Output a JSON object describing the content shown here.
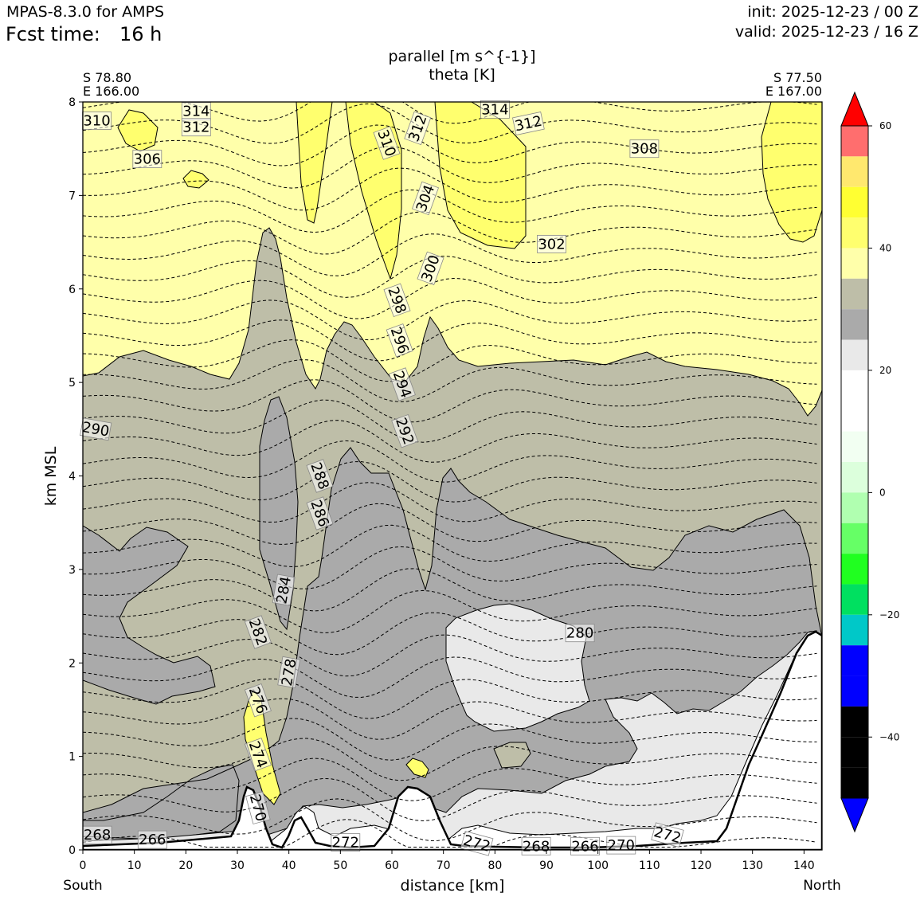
{
  "header": {
    "model": "MPAS-8.3.0 for AMPS",
    "fcst_label": "Fcst time:",
    "fcst_value": "16 h",
    "init": "init: 2025-12-23 / 00 Z",
    "valid": "valid: 2025-12-23 / 16 Z"
  },
  "endpoints": {
    "left_lat": "S 78.80",
    "left_lon": "E 166.00",
    "right_lat": "S 77.50",
    "right_lon": "E 167.00",
    "left_dir": "South",
    "right_dir": "North"
  },
  "chart_data": {
    "type": "cross-section",
    "title": "parallel [m s^{-1}]",
    "subtitle": "theta [K]",
    "xlabel": "distance [km]",
    "ylabel": "km MSL",
    "xlim": [
      0,
      143.5
    ],
    "ylim": [
      0,
      8
    ],
    "xticks": [
      "0",
      "10",
      "20",
      "30",
      "40",
      "50",
      "60",
      "70",
      "80",
      "90",
      "100",
      "110",
      "120",
      "130",
      "140"
    ],
    "yticks": [
      "0",
      "1",
      "2",
      "3",
      "4",
      "5",
      "6",
      "7",
      "8"
    ],
    "colorbar": {
      "ticks": [
        "60",
        "40",
        "20",
        "0",
        "−20",
        "−40"
      ],
      "tick_values": [
        60,
        40,
        20,
        0,
        -20,
        -40
      ],
      "range": [
        -50,
        60
      ],
      "levels": [
        60,
        55,
        50,
        45,
        40,
        35,
        30,
        25,
        20,
        15,
        10,
        5,
        0,
        -5,
        -10,
        -15,
        -20,
        -25,
        -30,
        -35,
        -40,
        -45,
        -50
      ],
      "colors": [
        "#ff0000",
        "#ff6e6e",
        "#ffe86e",
        "#ffff32",
        "#ffff6e",
        "#ffffaa",
        "#bebea8",
        "#aaaaaa",
        "#e9e9e9",
        "#ffffff",
        "#ffffff",
        "#f2fff2",
        "#dcffdc",
        "#b0ffb0",
        "#66ff66",
        "#20ff20",
        "#00e060",
        "#00c8c8",
        "#0000ff",
        "#0000ff"
      ]
    },
    "theta_labels": [
      {
        "text": "310",
        "x": 2.7,
        "y": 7.8,
        "rot": 0
      },
      {
        "text": "314",
        "x": 22,
        "y": 7.9,
        "rot": 0
      },
      {
        "text": "312",
        "x": 22,
        "y": 7.73,
        "rot": 0
      },
      {
        "text": "306",
        "x": 12.5,
        "y": 7.39,
        "rot": 0
      },
      {
        "text": "310",
        "x": 59,
        "y": 7.56,
        "rot": 70
      },
      {
        "text": "312",
        "x": 65,
        "y": 7.72,
        "rot": -70
      },
      {
        "text": "314",
        "x": 80,
        "y": 7.92,
        "rot": 0
      },
      {
        "text": "312",
        "x": 86.5,
        "y": 7.77,
        "rot": -12
      },
      {
        "text": "308",
        "x": 109,
        "y": 7.5,
        "rot": 0
      },
      {
        "text": "304",
        "x": 66.5,
        "y": 6.97,
        "rot": -70
      },
      {
        "text": "302",
        "x": 91,
        "y": 6.48,
        "rot": 0
      },
      {
        "text": "300",
        "x": 67.5,
        "y": 6.22,
        "rot": -70
      },
      {
        "text": "298",
        "x": 61,
        "y": 5.88,
        "rot": 70
      },
      {
        "text": "296",
        "x": 61.5,
        "y": 5.45,
        "rot": 70
      },
      {
        "text": "294",
        "x": 62,
        "y": 4.98,
        "rot": 70
      },
      {
        "text": "292",
        "x": 62.5,
        "y": 4.48,
        "rot": 70
      },
      {
        "text": "290",
        "x": 2.5,
        "y": 4.5,
        "rot": 10
      },
      {
        "text": "288",
        "x": 46,
        "y": 4.0,
        "rot": 70
      },
      {
        "text": "286",
        "x": 46,
        "y": 3.6,
        "rot": 70
      },
      {
        "text": "284",
        "x": 39,
        "y": 2.78,
        "rot": -80
      },
      {
        "text": "282",
        "x": 34,
        "y": 2.33,
        "rot": 70
      },
      {
        "text": "278",
        "x": 40,
        "y": 1.9,
        "rot": -80
      },
      {
        "text": "280",
        "x": 96.5,
        "y": 2.32,
        "rot": 0
      },
      {
        "text": "276",
        "x": 34,
        "y": 1.6,
        "rot": 70
      },
      {
        "text": "274",
        "x": 34,
        "y": 1.02,
        "rot": 70
      },
      {
        "text": "270",
        "x": 34,
        "y": 0.45,
        "rot": 75
      },
      {
        "text": "268",
        "x": 2.8,
        "y": 0.16,
        "rot": 0
      },
      {
        "text": "266",
        "x": 13.5,
        "y": 0.11,
        "rot": 0
      },
      {
        "text": "272",
        "x": 51,
        "y": 0.08,
        "rot": 0
      },
      {
        "text": "272",
        "x": 76.5,
        "y": 0.07,
        "rot": 15
      },
      {
        "text": "268",
        "x": 88,
        "y": 0.04,
        "rot": 0
      },
      {
        "text": "266",
        "x": 97.5,
        "y": 0.04,
        "rot": 0
      },
      {
        "text": "270",
        "x": 104.5,
        "y": 0.05,
        "rot": 0
      },
      {
        "text": "272",
        "x": 113.5,
        "y": 0.16,
        "rot": 15
      }
    ]
  }
}
